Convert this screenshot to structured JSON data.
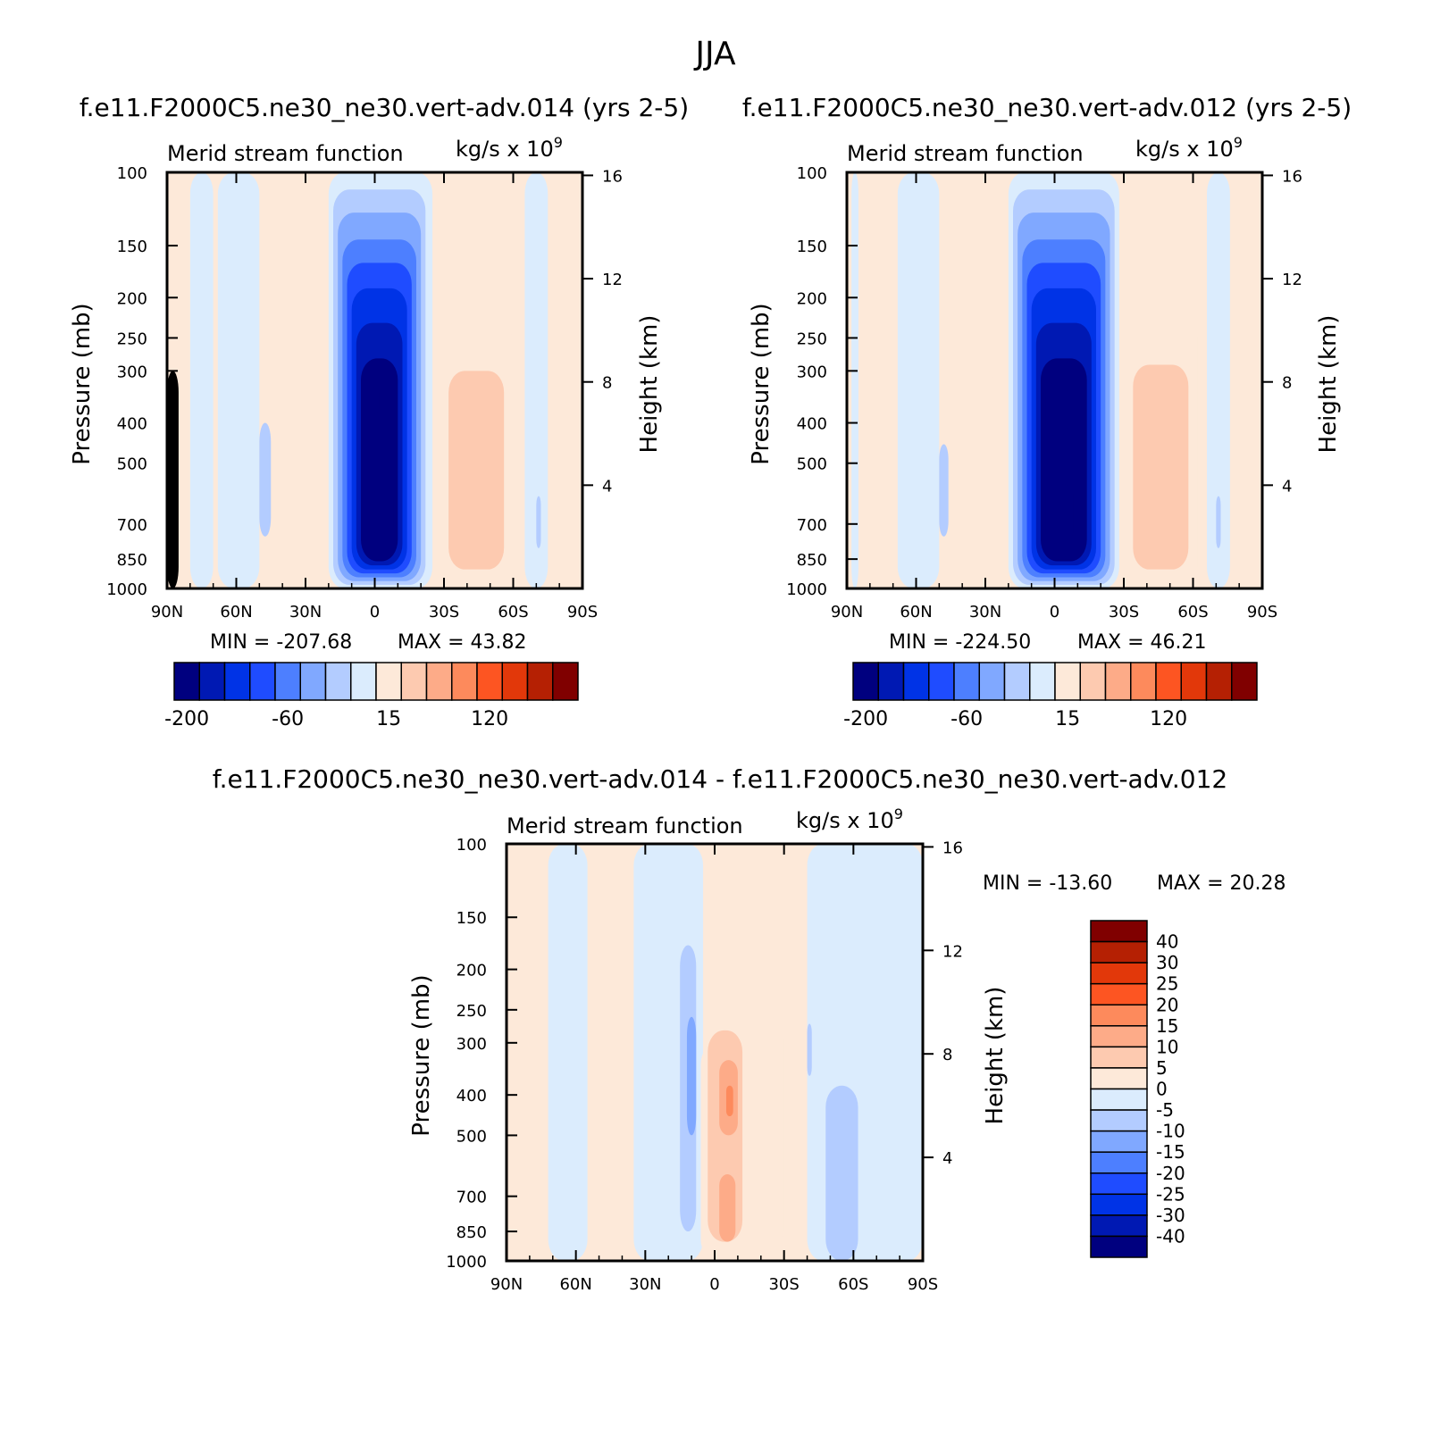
{
  "page_title": "JJA",
  "units_label": "kg/s x 10",
  "units_exponent": "9",
  "colors": {
    "neg": [
      "#00007f",
      "#0019b3",
      "#0033e6",
      "#1f4cff",
      "#4d7fff",
      "#80a8ff",
      "#b3ccff",
      "#dbecfd"
    ],
    "pos": [
      "#fde9d9",
      "#fdcab0",
      "#fdab88",
      "#fd8a5c",
      "#fd5522",
      "#e2380a",
      "#b52003",
      "#800000"
    ]
  },
  "chart_data": [
    {
      "type": "heatmap",
      "title": "f.e11.F2000C5.ne30_ne30.vert-adv.014 (yrs 2-5)",
      "subtitle": "Merid stream function",
      "ylabel": "Pressure (mb)",
      "ylabel_right": "Height (km)",
      "x_ticks": [
        "90N",
        "60N",
        "30N",
        "0",
        "30S",
        "60S",
        "90S"
      ],
      "y_ticks": [
        "100",
        "150",
        "200",
        "250",
        "300",
        "400",
        "500",
        "700",
        "850",
        "1000"
      ],
      "y_ticks_right": [
        "16",
        "12",
        "8",
        "4"
      ],
      "min_text": "MIN = -207.68",
      "max_text": "MAX = 43.82",
      "colorbar_labels": [
        "-200",
        "-60",
        "15",
        "120"
      ],
      "cells": [
        {
          "lat": [
            -90,
            -85
          ],
          "p": [
            300,
            1000
          ],
          "level": 0
        },
        {
          "lat": [
            -80,
            -70
          ],
          "p": [
            100,
            1000
          ],
          "level": -1
        },
        {
          "lat": [
            -68,
            -50
          ],
          "p": [
            100,
            1000
          ],
          "level": -1
        },
        {
          "lat": [
            -50,
            -45
          ],
          "p": [
            400,
            750
          ],
          "level": -2
        },
        {
          "lat": [
            -30,
            -25
          ],
          "p": [
            300,
            950
          ],
          "level": 1
        },
        {
          "lat": [
            -20,
            25
          ],
          "p": [
            100,
            1000
          ],
          "level": -1
        },
        {
          "lat": [
            -18,
            22
          ],
          "p": [
            110,
            980
          ],
          "level": -2
        },
        {
          "lat": [
            -16,
            20
          ],
          "p": [
            125,
            960
          ],
          "level": -3
        },
        {
          "lat": [
            -14,
            18
          ],
          "p": [
            145,
            940
          ],
          "level": -4
        },
        {
          "lat": [
            -12,
            16
          ],
          "p": [
            165,
            920
          ],
          "level": -5
        },
        {
          "lat": [
            -10,
            14
          ],
          "p": [
            190,
            900
          ],
          "level": -6
        },
        {
          "lat": [
            -8,
            12
          ],
          "p": [
            230,
            880
          ],
          "level": -7
        },
        {
          "lat": [
            -6,
            10
          ],
          "p": [
            280,
            860
          ],
          "level": -8
        },
        {
          "lat": [
            -2,
            2
          ],
          "p": [
            330,
            380
          ],
          "level": -9
        },
        {
          "lat": [
            -2,
            8
          ],
          "p": [
            580,
            740
          ],
          "level": -9
        },
        {
          "lat": [
            28,
            60
          ],
          "p": [
            230,
            1000
          ],
          "level": 1
        },
        {
          "lat": [
            32,
            56
          ],
          "p": [
            300,
            900
          ],
          "level": 2
        },
        {
          "lat": [
            65,
            75
          ],
          "p": [
            100,
            1000
          ],
          "level": -1
        },
        {
          "lat": [
            70,
            72
          ],
          "p": [
            600,
            800
          ],
          "level": -2
        },
        {
          "lat": [
            75,
            82
          ],
          "p": [
            880,
            1000
          ],
          "level": 1
        }
      ]
    },
    {
      "type": "heatmap",
      "title": "f.e11.F2000C5.ne30_ne30.vert-adv.012 (yrs 2-5)",
      "subtitle": "Merid stream function",
      "ylabel": "Pressure (mb)",
      "ylabel_right": "Height (km)",
      "x_ticks": [
        "90N",
        "60N",
        "30N",
        "0",
        "30S",
        "60S",
        "90S"
      ],
      "y_ticks": [
        "100",
        "150",
        "200",
        "250",
        "300",
        "400",
        "500",
        "700",
        "850",
        "1000"
      ],
      "y_ticks_right": [
        "16",
        "12",
        "8",
        "4"
      ],
      "min_text": "MIN = -224.50",
      "max_text": "MAX = 46.21",
      "colorbar_labels": [
        "-200",
        "-60",
        "15",
        "120"
      ],
      "cells": [
        {
          "lat": [
            -88,
            -85
          ],
          "p": [
            100,
            1000
          ],
          "level": -1
        },
        {
          "lat": [
            -68,
            -50
          ],
          "p": [
            100,
            1000
          ],
          "level": -1
        },
        {
          "lat": [
            -50,
            -46
          ],
          "p": [
            450,
            750
          ],
          "level": -2
        },
        {
          "lat": [
            -30,
            -26
          ],
          "p": [
            300,
            950
          ],
          "level": 1
        },
        {
          "lat": [
            -20,
            28
          ],
          "p": [
            100,
            1000
          ],
          "level": -1
        },
        {
          "lat": [
            -18,
            26
          ],
          "p": [
            110,
            980
          ],
          "level": -2
        },
        {
          "lat": [
            -16,
            24
          ],
          "p": [
            125,
            960
          ],
          "level": -3
        },
        {
          "lat": [
            -14,
            22
          ],
          "p": [
            145,
            940
          ],
          "level": -4
        },
        {
          "lat": [
            -12,
            20
          ],
          "p": [
            165,
            920
          ],
          "level": -5
        },
        {
          "lat": [
            -10,
            18
          ],
          "p": [
            190,
            900
          ],
          "level": -6
        },
        {
          "lat": [
            -8,
            16
          ],
          "p": [
            230,
            880
          ],
          "level": -7
        },
        {
          "lat": [
            -6,
            14
          ],
          "p": [
            280,
            860
          ],
          "level": -8
        },
        {
          "lat": [
            -4,
            6
          ],
          "p": [
            320,
            430
          ],
          "level": -9
        },
        {
          "lat": [
            -4,
            8
          ],
          "p": [
            560,
            780
          ],
          "level": -9
        },
        {
          "lat": [
            30,
            62
          ],
          "p": [
            220,
            1000
          ],
          "level": 1
        },
        {
          "lat": [
            34,
            58
          ],
          "p": [
            290,
            900
          ],
          "level": 2
        },
        {
          "lat": [
            66,
            76
          ],
          "p": [
            100,
            1000
          ],
          "level": -1
        },
        {
          "lat": [
            70,
            72
          ],
          "p": [
            600,
            800
          ],
          "level": -2
        },
        {
          "lat": [
            76,
            82
          ],
          "p": [
            900,
            1000
          ],
          "level": 1
        }
      ]
    },
    {
      "type": "heatmap",
      "title": "f.e11.F2000C5.ne30_ne30.vert-adv.014 - f.e11.F2000C5.ne30_ne30.vert-adv.012",
      "subtitle": "Merid stream function",
      "ylabel": "Pressure (mb)",
      "ylabel_right": "Height (km)",
      "x_ticks": [
        "90N",
        "60N",
        "30N",
        "0",
        "30S",
        "60S",
        "90S"
      ],
      "y_ticks": [
        "100",
        "150",
        "200",
        "250",
        "300",
        "400",
        "500",
        "700",
        "850",
        "1000"
      ],
      "y_ticks_right": [
        "16",
        "12",
        "8",
        "4"
      ],
      "min_text": "MIN = -13.60",
      "max_text": "MAX = 20.28",
      "colorbar_labels": [
        "40",
        "30",
        "25",
        "20",
        "15",
        "10",
        "5",
        "0",
        "-5",
        "-10",
        "-15",
        "-20",
        "-25",
        "-30",
        "-40"
      ],
      "cells": [
        {
          "lat": [
            -72,
            -55
          ],
          "p": [
            100,
            1000
          ],
          "level": -1
        },
        {
          "lat": [
            -35,
            -5
          ],
          "p": [
            100,
            1000
          ],
          "level": -1
        },
        {
          "lat": [
            -15,
            -8
          ],
          "p": [
            175,
            850
          ],
          "level": -2
        },
        {
          "lat": [
            -12,
            -8
          ],
          "p": [
            260,
            500
          ],
          "level": -3
        },
        {
          "lat": [
            -6,
            38
          ],
          "p": [
            300,
            1000
          ],
          "level": 1
        },
        {
          "lat": [
            -5,
            30
          ],
          "p": [
            260,
            950
          ],
          "level": 1
        },
        {
          "lat": [
            -3,
            12
          ],
          "p": [
            280,
            900
          ],
          "level": 2
        },
        {
          "lat": [
            2,
            10
          ],
          "p": [
            330,
            500
          ],
          "level": 3
        },
        {
          "lat": [
            2,
            9
          ],
          "p": [
            620,
            900
          ],
          "level": 3
        },
        {
          "lat": [
            5,
            8
          ],
          "p": [
            380,
            450
          ],
          "level": 4
        },
        {
          "lat": [
            40,
            90
          ],
          "p": [
            100,
            1000
          ],
          "level": -1
        },
        {
          "lat": [
            48,
            62
          ],
          "p": [
            380,
            1000
          ],
          "level": -2
        },
        {
          "lat": [
            40,
            42
          ],
          "p": [
            270,
            360
          ],
          "level": -2
        }
      ]
    }
  ]
}
